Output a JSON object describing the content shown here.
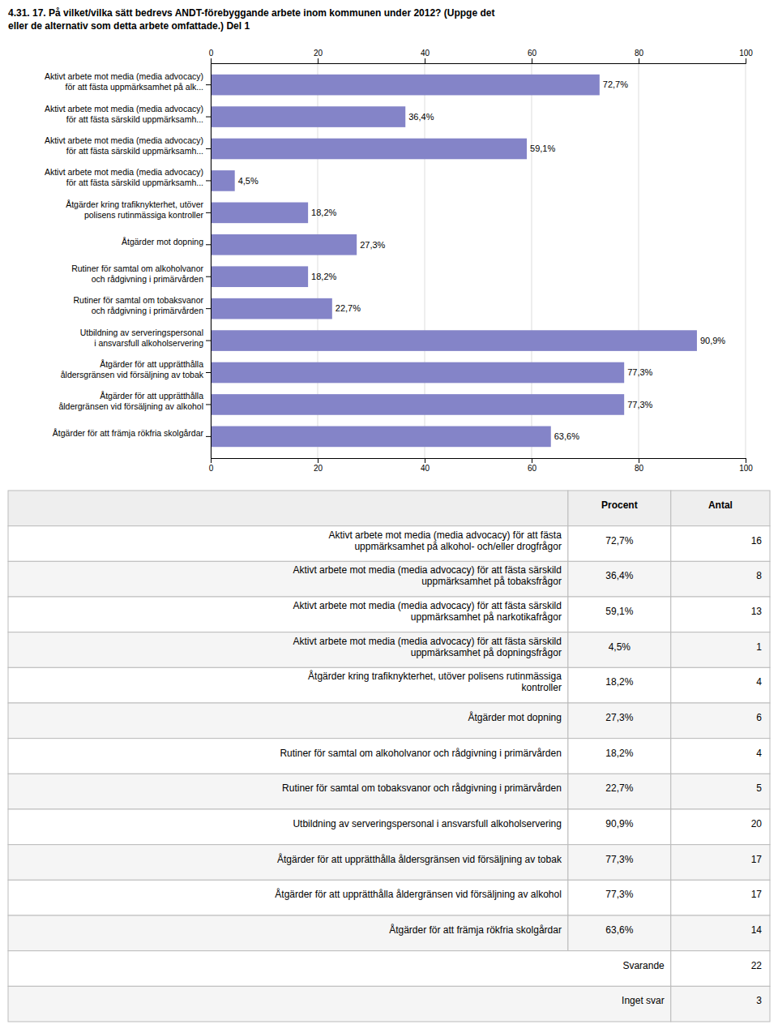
{
  "chart_data": {
    "type": "bar",
    "orientation": "horizontal",
    "title": "4.31. 17. På vilket/vilka sätt bedrevs ANDT-förebyggande arbete inom kommunen under 2012? (Uppge det\neller de alternativ som detta arbete omfattade.) Del 1",
    "categories": [
      "Aktivt arbete mot media (media advocacy)\nför att fästa uppmärksamhet på alk...",
      "Aktivt arbete mot media (media advocacy)\nför att fästa särskild uppmärksamh...",
      "Aktivt arbete mot media (media advocacy)\nför att fästa särskild uppmärksamh...",
      "Aktivt arbete mot media (media advocacy)\nför att fästa särskild uppmärksamh...",
      "Åtgärder kring trafiknykterhet, utöver\npolisens rutinmässiga kontroller",
      "Åtgärder mot dopning",
      "Rutiner för samtal om alkoholvanor\noch rådgivning i primärvården",
      "Rutiner för samtal om tobaksvanor\noch rådgivning i primärvården",
      "Utbildning av serveringspersonal\ni ansvarsfull alkoholservering",
      "Åtgärder för att upprätthålla\nåldersgränsen vid försäljning av tobak",
      "Åtgärder för att upprätthålla\nåldergränsen vid försäljning av alkohol",
      "Åtgärder för att främja rökfria skolgårdar"
    ],
    "values": [
      72.7,
      36.4,
      59.1,
      4.5,
      18.2,
      27.3,
      18.2,
      22.7,
      90.9,
      77.3,
      77.3,
      63.6
    ],
    "value_labels": [
      "72,7%",
      "36,4%",
      "59,1%",
      "4,5%",
      "18,2%",
      "27,3%",
      "18,2%",
      "22,7%",
      "90,9%",
      "77,3%",
      "77,3%",
      "63,6%"
    ],
    "data_labels": true,
    "color": "#8484c8",
    "xlim": [
      0,
      100
    ],
    "xticks": [
      0,
      20,
      40,
      60,
      80,
      100
    ],
    "grid": true,
    "table": {
      "columns": [
        "Procent",
        "Antal"
      ],
      "rows": [
        [
          "Aktivt arbete mot media (media advocacy) för att fästa\nuppmärksamhet på alkohol- och/eller drogfrågor",
          "72,7%",
          "16"
        ],
        [
          "Aktivt arbete mot media (media advocacy) för att fästa särskild\nuppmärksamhet på tobaksfrågor",
          "36,4%",
          "8"
        ],
        [
          "Aktivt arbete mot media (media advocacy) för att fästa särskild\nuppmärksamhet på narkotikafrågor",
          "59,1%",
          "13"
        ],
        [
          "Aktivt arbete mot media (media advocacy) för att fästa särskild\nuppmärksamhet på dopningsfrågor",
          "4,5%",
          "1"
        ],
        [
          "Åtgärder kring trafiknykterhet, utöver polisens rutinmässiga\nkontroller",
          "18,2%",
          "4"
        ],
        [
          "Åtgärder mot dopning",
          "27,3%",
          "6"
        ],
        [
          "Rutiner för samtal om alkoholvanor och rådgivning i primärvården",
          "18,2%",
          "4"
        ],
        [
          "Rutiner för samtal om tobaksvanor och rådgivning i primärvården",
          "22,7%",
          "5"
        ],
        [
          "Utbildning av serveringspersonal i ansvarsfull alkoholservering",
          "90,9%",
          "20"
        ],
        [
          "Åtgärder för att upprätthålla åldersgränsen vid försäljning av tobak",
          "77,3%",
          "17"
        ],
        [
          "Åtgärder för att upprätthålla åldergränsen vid försäljning av alkohol",
          "77,3%",
          "17"
        ],
        [
          "Åtgärder för att främja rökfria skolgårdar",
          "63,6%",
          "14"
        ]
      ],
      "summary_rows": [
        [
          "Svarande",
          "22"
        ],
        [
          "Inget svar",
          "3"
        ]
      ]
    }
  }
}
